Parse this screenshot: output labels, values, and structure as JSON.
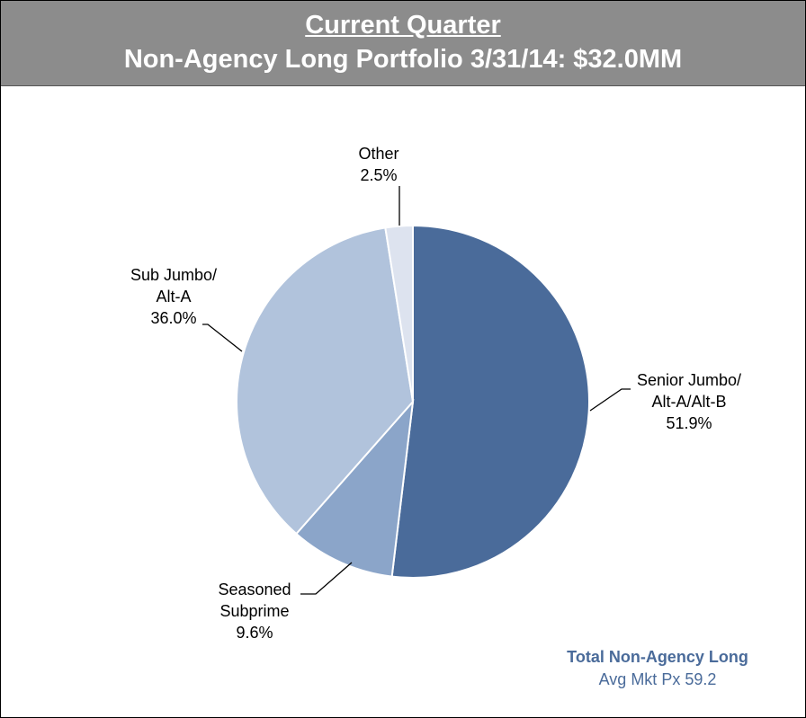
{
  "chart_data": {
    "type": "pie",
    "title": "Current Quarter",
    "subtitle": "Non-Agency Long Portfolio 3/31/14: $32.0MM",
    "categories": [
      "Senior Jumbo/\nAlt-A/Alt-B",
      "Seasoned\nSubprime",
      "Sub Jumbo/\nAlt-A",
      "Other"
    ],
    "values": [
      51.9,
      9.6,
      36.0,
      2.5
    ],
    "value_labels": [
      "51.9%",
      "9.6%",
      "36.0%",
      "2.5%"
    ],
    "colors": [
      "#4a6b9a",
      "#8ba5c9",
      "#b1c3dc",
      "#dde3ef"
    ],
    "annotations": [
      "Total Non-Agency Long",
      "Avg Mkt Px 59.2"
    ]
  }
}
